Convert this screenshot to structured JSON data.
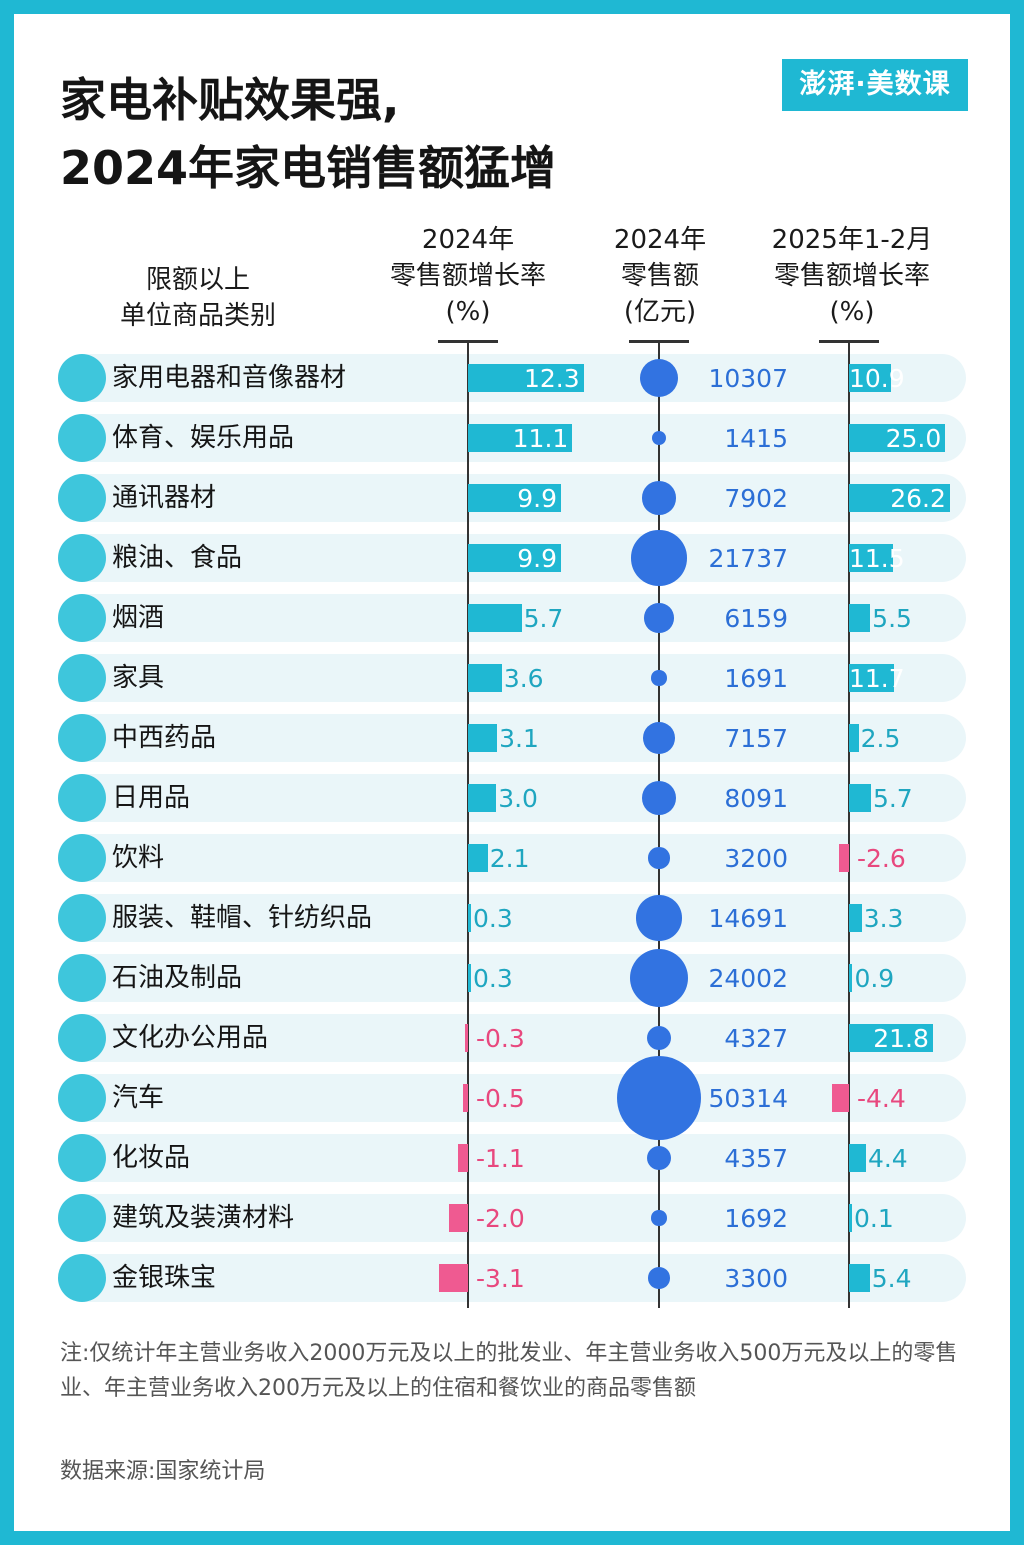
{
  "title_lines": [
    "家电补贴效果强,",
    "2024年家电销售额猛增"
  ],
  "logo_text": "澎湃·美数课",
  "headers": {
    "category": [
      "限额以上",
      "单位商品类别"
    ],
    "growth_2024": [
      "2024年",
      "零售额增长率",
      "(%)"
    ],
    "sales_2024": [
      "2024年",
      "零售额",
      "(亿元)"
    ],
    "growth_2025": [
      "2025年1-2月",
      "零售额增长率",
      "(%)"
    ]
  },
  "colors": {
    "positive_bar": "#1fb8d3",
    "negative_bar": "#ef5a91",
    "bubble": "#3273e1",
    "row_background": "#eaf6f9"
  },
  "chart_data": {
    "type": "table",
    "categories": [
      "家用电器和音像器材",
      "体育、娱乐用品",
      "通讯器材",
      "粮油、食品",
      "烟酒",
      "家具",
      "中西药品",
      "日用品",
      "饮料",
      "服装、鞋帽、针纺织品",
      "石油及制品",
      "文化办公用品",
      "汽车",
      "化妆品",
      "建筑及装潢材料",
      "金银珠宝"
    ],
    "series": [
      {
        "name": "2024年零售额增长率(%)",
        "values": [
          12.3,
          11.1,
          9.9,
          9.9,
          5.7,
          3.6,
          3.1,
          3.0,
          2.1,
          0.3,
          0.3,
          -0.3,
          -0.5,
          -1.1,
          -2.0,
          -3.1
        ],
        "labels": [
          "12.3",
          "11.1",
          "9.9",
          "9.9",
          "5.7",
          "3.6",
          "3.1",
          "3.0",
          "2.1",
          "0.3",
          "0.3",
          "-0.3",
          "-0.5",
          "-1.1",
          "-2.0",
          "-3.1"
        ]
      },
      {
        "name": "2024年零售额(亿元)",
        "values": [
          10307,
          1415,
          7902,
          21737,
          6159,
          1691,
          7157,
          8091,
          3200,
          14691,
          24002,
          4327,
          50314,
          4357,
          1692,
          3300
        ],
        "labels": [
          "10307",
          "1415",
          "7902",
          "21737",
          "6159",
          "1691",
          "7157",
          "8091",
          "3200",
          "14691",
          "24002",
          "4327",
          "50314",
          "4357",
          "1692",
          "3300"
        ]
      },
      {
        "name": "2025年1-2月零售额增长率(%)",
        "values": [
          10.9,
          25.0,
          26.2,
          11.5,
          5.5,
          11.7,
          2.5,
          5.7,
          -2.6,
          3.3,
          0.9,
          21.8,
          -4.4,
          4.4,
          0.1,
          5.4
        ],
        "labels": [
          "10.9",
          "25.0",
          "26.2",
          "11.5",
          "5.5",
          "11.7",
          "2.5",
          "5.7",
          "-2.6",
          "3.3",
          "0.9",
          "21.8",
          "-4.4",
          "4.4",
          "0.1",
          "5.4"
        ]
      }
    ]
  },
  "note": "注:仅统计年主营业务收入2000万元及以上的批发业、年主营业务收入500万元及以上的零售业、年主营业务收入200万元及以上的住宿和餐饮业的商品零售额",
  "source": "数据来源:国家统计局"
}
